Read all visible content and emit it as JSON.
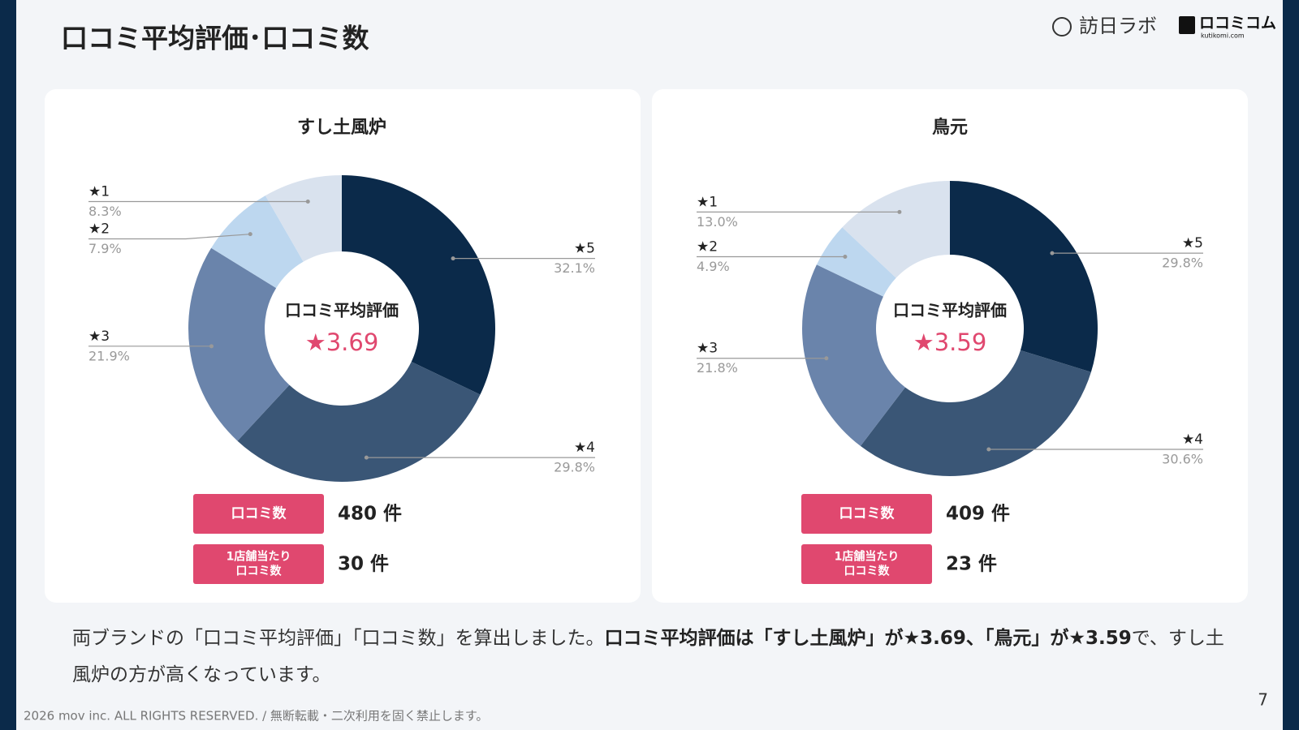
{
  "header": {
    "title": "口コミ平均評価･口コミ数",
    "logos": [
      "訪日ラボ",
      "ロコミコム",
      "kutikomi.com"
    ]
  },
  "chart_data": [
    {
      "type": "pie",
      "donut": true,
      "title": "すし土風炉",
      "categories": [
        "★5",
        "★4",
        "★3",
        "★2",
        "★1"
      ],
      "values": [
        32.1,
        29.8,
        21.9,
        7.9,
        8.3
      ],
      "value_labels": [
        "32.1%",
        "29.8%",
        "21.9%",
        "7.9%",
        "8.3%"
      ],
      "colors": [
        "#0b2a4a",
        "#3a5676",
        "#6a84ab",
        "#bdd7ef",
        "#d9e2ee"
      ],
      "center_label": "口コミ平均評価",
      "center_value": "★3.69"
    },
    {
      "type": "pie",
      "donut": true,
      "title": "鳥元",
      "categories": [
        "★5",
        "★4",
        "★3",
        "★2",
        "★1"
      ],
      "values": [
        29.8,
        30.6,
        21.8,
        4.9,
        13.0
      ],
      "value_labels": [
        "29.8%",
        "30.6%",
        "21.8%",
        "4.9%",
        "13.0%"
      ],
      "colors": [
        "#0b2a4a",
        "#3a5676",
        "#6a84ab",
        "#bdd7ef",
        "#d9e2ee"
      ],
      "center_label": "口コミ平均評価",
      "center_value": "★3.59"
    }
  ],
  "stats": [
    [
      {
        "label": [
          "口コミ数"
        ],
        "value": "480 件"
      },
      {
        "label": [
          "1店舗当たり",
          "口コミ数"
        ],
        "value": "30 件"
      }
    ],
    [
      {
        "label": [
          "口コミ数"
        ],
        "value": "409 件"
      },
      {
        "label": [
          "1店舗当たり",
          "口コミ数"
        ],
        "value": "23 件"
      }
    ]
  ],
  "summary": [
    "両ブランドの「口コミ平均評価」「口コミ数」を算出しました。",
    "口コミ平均評価は「すし土風炉」が★3.69、「鳥元」が★3.59",
    "で、すし土風炉の方が高くなっています。"
  ],
  "footer": {
    "copyright": "2026 mov inc. ALL RIGHTS RESERVED. / 無断転載・二次利用を固く禁止します。",
    "page": "7"
  }
}
